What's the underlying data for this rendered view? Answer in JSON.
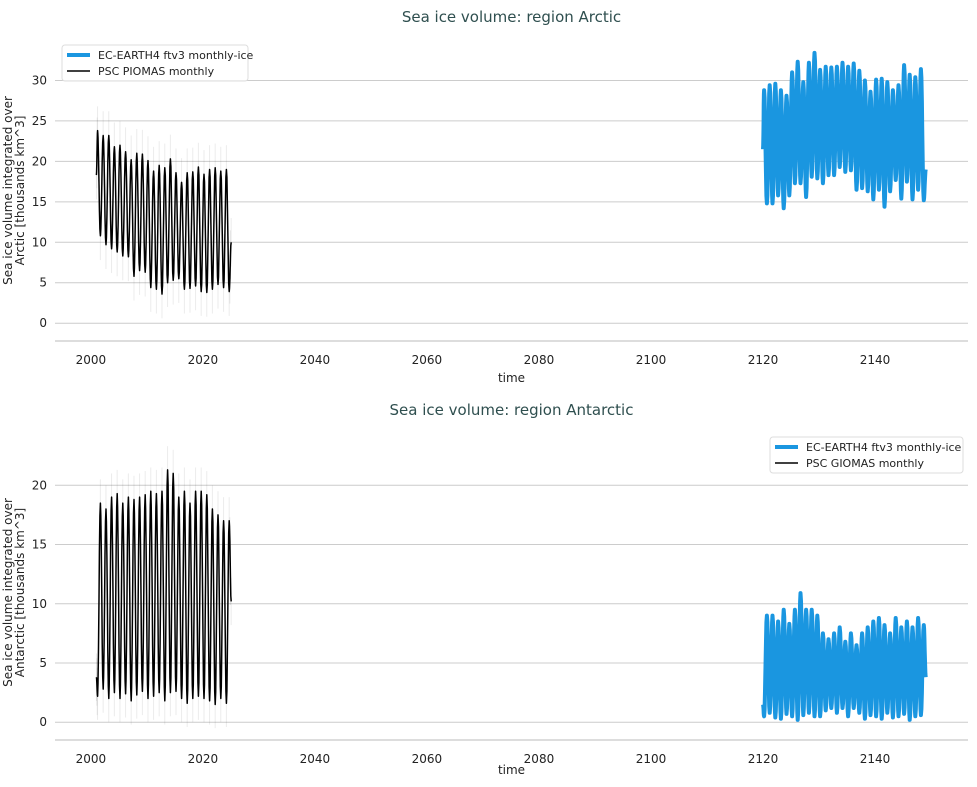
{
  "chart_data": [
    {
      "type": "line",
      "title": "Sea ice volume: region Arctic",
      "xlabel": "time",
      "ylabel": [
        "Sea ice volume integrated over",
        "Arctic [thousands km^3]"
      ],
      "xlim": [
        1993.6,
        2156.6
      ],
      "ylim": [
        -2.2,
        35
      ],
      "xticks": [
        2000,
        2020,
        2040,
        2060,
        2080,
        2100,
        2120,
        2140
      ],
      "yticks": [
        0,
        5,
        10,
        15,
        20,
        25,
        30
      ],
      "grid": "horizontal",
      "legend": "top-left",
      "seasonal_peak": "March",
      "series": [
        {
          "name": "EC-EARTH4 ftv3 monthly-ice",
          "color": "#1a96e0",
          "start_year": 2120,
          "start_value": 21.5,
          "end_value": 19.0,
          "annual_max": [
            28.8,
            29.4,
            29.6,
            28.8,
            28.1,
            31.0,
            32.3,
            29.8,
            32.2,
            33.4,
            31.3,
            31.7,
            31.6,
            31.7,
            32.2,
            31.7,
            32.1,
            31.2,
            30.0,
            28.6,
            30.1,
            30.2,
            29.8,
            28.8,
            29.4,
            31.9,
            30.7,
            30.4,
            31.4
          ],
          "annual_min": [
            14.8,
            14.8,
            15.8,
            14.2,
            15.8,
            17.3,
            17.3,
            15.6,
            18.1,
            17.9,
            17.3,
            18.3,
            18.3,
            19.3,
            18.7,
            18.9,
            16.5,
            16.7,
            16.3,
            15.3,
            16.5,
            14.4,
            16.3,
            17.7,
            15.4,
            17.5,
            15.3,
            16.5,
            15.2
          ]
        },
        {
          "name": "PSC PIOMAS monthly",
          "color": "#000000",
          "start_year": 2001,
          "start_value": 18.3,
          "end_value": 10.0,
          "uncertainty_band": 3,
          "annual_max": [
            23.8,
            23.2,
            23.2,
            21.8,
            22.0,
            21.2,
            20.2,
            21.0,
            20.9,
            20.1,
            18.8,
            19.5,
            19.2,
            20.3,
            18.6,
            17.4,
            18.6,
            18.7,
            19.3,
            18.4,
            19.0,
            19.2,
            18.8,
            19.0
          ],
          "annual_min": [
            10.8,
            9.7,
            9.2,
            8.8,
            8.3,
            8.2,
            5.8,
            6.5,
            6.3,
            4.4,
            4.2,
            3.6,
            5.0,
            5.3,
            5.5,
            4.2,
            4.3,
            4.6,
            3.9,
            3.8,
            4.2,
            4.8,
            4.4,
            3.9
          ]
        }
      ]
    },
    {
      "type": "line",
      "title": "Sea ice volume: region Antarctic",
      "xlabel": "time",
      "ylabel": [
        "Sea ice volume integrated over",
        "Antarctic [thousands km^3]"
      ],
      "xlim": [
        1993.6,
        2156.6
      ],
      "ylim": [
        -1.5,
        23.4
      ],
      "xticks": [
        2000,
        2020,
        2040,
        2060,
        2080,
        2100,
        2120,
        2140
      ],
      "yticks": [
        0,
        5,
        10,
        15,
        20
      ],
      "grid": "horizontal",
      "legend": "top-right",
      "seasonal_peak": "September",
      "series": [
        {
          "name": "EC-EARTH4 ftv3 monthly-ice",
          "color": "#1a96e0",
          "start_year": 2120,
          "start_value": 1.5,
          "end_value": 3.8,
          "annual_max": [
            9.0,
            9.0,
            8.5,
            9.5,
            8.3,
            9.5,
            10.9,
            9.5,
            9.5,
            9.0,
            7.5,
            7.0,
            7.5,
            8.0,
            6.8,
            7.5,
            6.5,
            7.5,
            8.0,
            8.5,
            8.8,
            8.2,
            7.5,
            8.8,
            8.0,
            8.5,
            8.0,
            8.8,
            8.2
          ],
          "annual_min": [
            0.5,
            0.8,
            0.4,
            0.3,
            0.7,
            0.5,
            0.2,
            0.6,
            0.8,
            0.5,
            0.5,
            1.0,
            1.2,
            0.8,
            1.2,
            0.5,
            1.2,
            0.8,
            0.3,
            0.6,
            0.5,
            0.3,
            0.8,
            0.4,
            0.5,
            0.7,
            0.2,
            0.5,
            0.6
          ]
        },
        {
          "name": "PSC GIOMAS monthly",
          "color": "#000000",
          "start_year": 2001,
          "start_value": 3.8,
          "end_value": 10.2,
          "uncertainty_band": 2,
          "annual_max": [
            18.5,
            18.0,
            19.0,
            19.3,
            18.5,
            19.0,
            18.8,
            19.0,
            19.2,
            19.5,
            19.3,
            19.5,
            21.3,
            21.0,
            19.0,
            19.5,
            18.5,
            19.5,
            19.5,
            19.2,
            18.0,
            17.5,
            17.0,
            17.0
          ],
          "annual_min": [
            2.2,
            2.8,
            2.0,
            2.5,
            2.0,
            2.4,
            1.8,
            2.3,
            2.6,
            2.0,
            2.2,
            2.5,
            1.8,
            2.5,
            2.6,
            2.0,
            1.6,
            2.0,
            2.2,
            2.0,
            1.8,
            1.5,
            2.0,
            1.6
          ]
        }
      ]
    }
  ]
}
